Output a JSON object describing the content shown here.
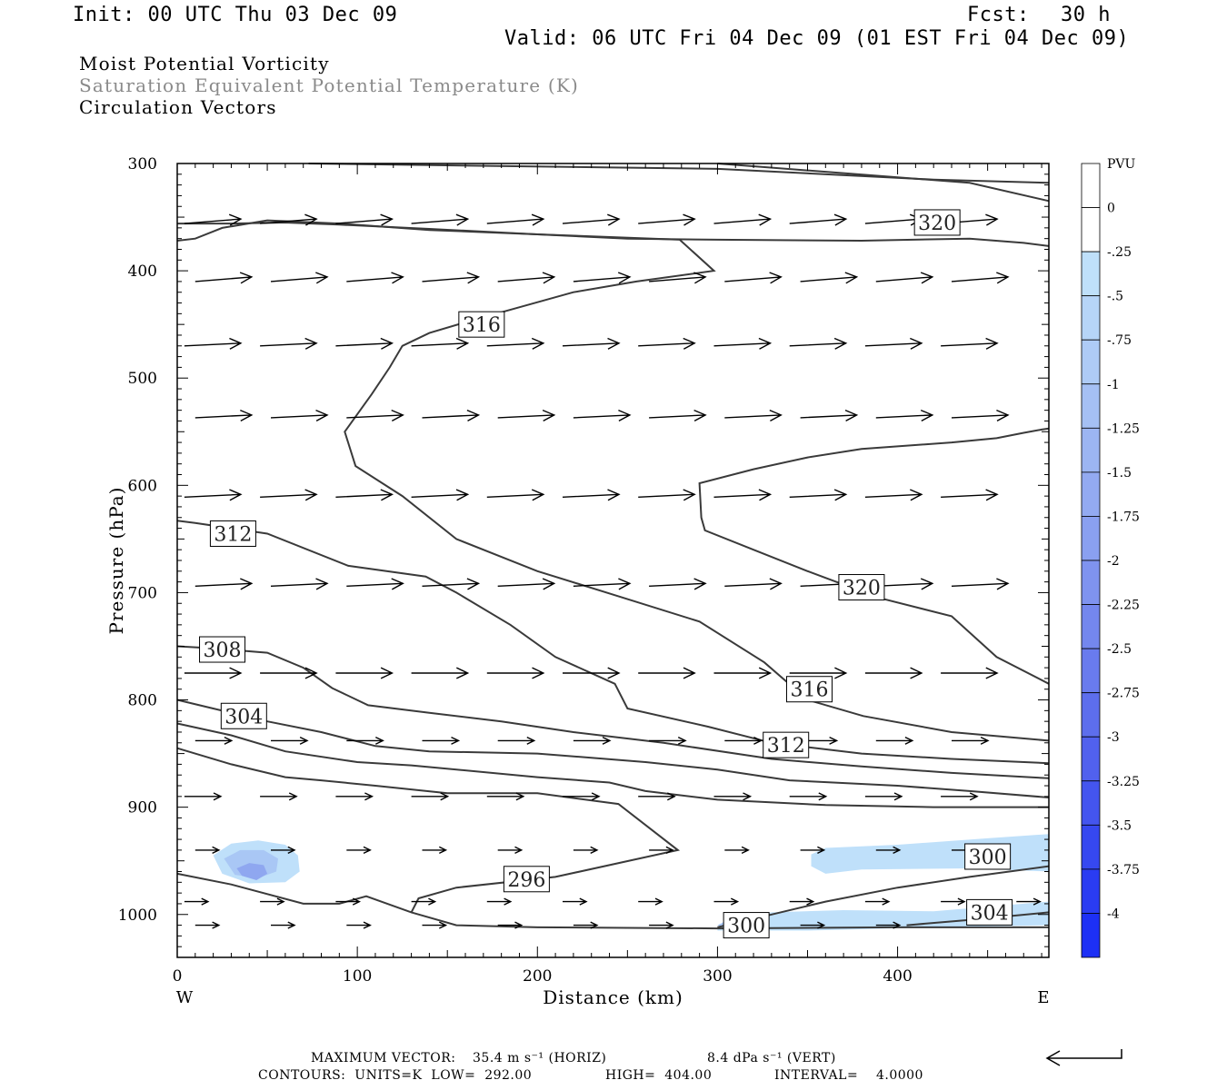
{
  "header": {
    "init": "Init: 00 UTC Thu 03 Dec 09",
    "fcst_label": "Fcst:",
    "fcst_value": "30 h",
    "valid": "Valid: 06 UTC Fri 04 Dec 09 (01 EST Fri 04 Dec 09)"
  },
  "fields": [
    "Moist Potential Vorticity",
    "Saturation Equivalent Potential Temperature (K)",
    "Circulation Vectors"
  ],
  "footer": {
    "max_vector_label": "MAXIMUM VECTOR:",
    "max_vector_horiz": "35.4 m s⁻¹ (HORIZ)",
    "max_vector_vert": "8.4 dPa s⁻¹ (VERT)",
    "contours": "CONTOURS:  UNITS=K  LOW=  292.00",
    "high": "HIGH=  404.00",
    "interval": "INTERVAL=    4.0000"
  },
  "colors": {
    "contour": "#3a3a3a",
    "pv_light": "#bfe0fa",
    "pv_mid": "#a9c7f5",
    "pv_strong": "#8fa7f0"
  },
  "chart_data": {
    "type": "cross-section",
    "xlabel": "Distance (km)",
    "ylabel": "Pressure (hPa)",
    "x_ticks": [
      0,
      100,
      200,
      300,
      400
    ],
    "y_ticks": [
      300,
      400,
      500,
      600,
      700,
      800,
      900,
      1000
    ],
    "xlim": [
      0,
      484
    ],
    "ylim": [
      1040,
      300
    ],
    "side_left": "W",
    "side_right": "E",
    "colorbar": {
      "title": "PVU",
      "ticks": [
        "0",
        "-.25",
        "-.5",
        "-.75",
        "-1",
        "-1.25",
        "-1.5",
        "-1.75",
        "-2",
        "-2.25",
        "-2.5",
        "-2.75",
        "-3",
        "-3.25",
        "-3.5",
        "-3.75",
        "-4"
      ],
      "colors": [
        "#ffffff",
        "#ffffff",
        "#bfe0fa",
        "#b6d5f8",
        "#aecbf6",
        "#a5c0f4",
        "#9cb5f2",
        "#93aaf1",
        "#8aa0f0",
        "#7f93ef",
        "#7487ee",
        "#697bee",
        "#5d6eed",
        "#5161ee",
        "#4455ef",
        "#3648f0",
        "#2a3cf2",
        "#1d30f5"
      ]
    },
    "contour_labels": [
      {
        "text": "320",
        "x": 422,
        "p": 355
      },
      {
        "text": "316",
        "x": 169,
        "p": 450
      },
      {
        "text": "320",
        "x": 380,
        "p": 695
      },
      {
        "text": "312",
        "x": 31,
        "p": 645
      },
      {
        "text": "308",
        "x": 25,
        "p": 753
      },
      {
        "text": "304",
        "x": 37,
        "p": 815
      },
      {
        "text": "316",
        "x": 351,
        "p": 790
      },
      {
        "text": "312",
        "x": 338,
        "p": 842
      },
      {
        "text": "296",
        "x": 194,
        "p": 967
      },
      {
        "text": "300",
        "x": 450,
        "p": 946
      },
      {
        "text": "304",
        "x": 451,
        "p": 998
      },
      {
        "text": "300",
        "x": 316,
        "p": 1010
      }
    ],
    "contours": [
      {
        "points": [
          [
            73,
            300
          ],
          [
            300,
            305
          ],
          [
            420,
            315
          ],
          [
            484,
            318
          ]
        ]
      },
      {
        "points": [
          [
            300,
            300
          ],
          [
            440,
            318
          ],
          [
            484,
            335
          ]
        ]
      },
      {
        "points": [
          [
            0,
            372
          ],
          [
            10,
            370
          ],
          [
            25,
            360
          ],
          [
            50,
            353
          ],
          [
            90,
            356
          ],
          [
            140,
            362
          ],
          [
            200,
            366
          ],
          [
            250,
            370
          ],
          [
            300,
            371
          ],
          [
            380,
            372
          ],
          [
            440,
            370
          ],
          [
            470,
            374
          ],
          [
            484,
            377
          ]
        ]
      },
      {
        "points": [
          [
            0,
            356
          ],
          [
            30,
            356
          ],
          [
            60,
            355
          ],
          [
            90,
            357
          ],
          [
            140,
            361
          ],
          [
            200,
            366
          ],
          [
            279,
            371
          ],
          [
            298,
            400
          ],
          [
            255,
            410
          ],
          [
            220,
            420
          ],
          [
            160,
            448
          ],
          [
            140,
            458
          ],
          [
            125,
            470
          ],
          [
            118,
            490
          ],
          [
            108,
            515
          ],
          [
            93,
            550
          ],
          [
            99,
            582
          ],
          [
            125,
            610
          ],
          [
            155,
            650
          ],
          [
            200,
            680
          ],
          [
            248,
            705
          ],
          [
            290,
            727
          ],
          [
            326,
            765
          ],
          [
            350,
            800
          ],
          [
            381,
            815
          ],
          [
            430,
            830
          ],
          [
            484,
            838
          ]
        ]
      },
      {
        "points": [
          [
            0,
            633
          ],
          [
            10,
            635
          ],
          [
            50,
            645
          ],
          [
            95,
            675
          ],
          [
            138,
            685
          ],
          [
            155,
            700
          ],
          [
            185,
            730
          ],
          [
            210,
            760
          ],
          [
            243,
            785
          ],
          [
            250,
            808
          ],
          [
            295,
            825
          ],
          [
            330,
            840
          ],
          [
            380,
            850
          ],
          [
            430,
            855
          ],
          [
            484,
            859
          ]
        ]
      },
      {
        "points": [
          [
            0,
            750
          ],
          [
            20,
            752
          ],
          [
            50,
            756
          ],
          [
            70,
            770
          ],
          [
            86,
            789
          ],
          [
            106,
            805
          ],
          [
            140,
            812
          ],
          [
            180,
            820
          ],
          [
            220,
            830
          ],
          [
            270,
            840
          ],
          [
            330,
            855
          ],
          [
            380,
            862
          ],
          [
            430,
            868
          ],
          [
            484,
            873
          ]
        ]
      },
      {
        "points": [
          [
            0,
            800
          ],
          [
            20,
            808
          ],
          [
            50,
            820
          ],
          [
            80,
            830
          ],
          [
            110,
            843
          ],
          [
            140,
            848
          ],
          [
            200,
            850
          ],
          [
            260,
            858
          ],
          [
            300,
            865
          ],
          [
            340,
            875
          ],
          [
            400,
            880
          ],
          [
            440,
            885
          ],
          [
            484,
            891
          ]
        ]
      },
      {
        "points": [
          [
            0,
            822
          ],
          [
            30,
            833
          ],
          [
            60,
            848
          ],
          [
            100,
            858
          ],
          [
            130,
            861
          ],
          [
            200,
            872
          ],
          [
            240,
            877
          ],
          [
            260,
            885
          ],
          [
            300,
            893
          ],
          [
            360,
            898
          ],
          [
            420,
            900
          ],
          [
            484,
            900
          ]
        ]
      },
      {
        "points": [
          [
            0,
            845
          ],
          [
            30,
            860
          ],
          [
            60,
            872
          ],
          [
            80,
            875
          ],
          [
            110,
            880
          ],
          [
            150,
            887
          ],
          [
            200,
            887
          ],
          [
            245,
            897
          ],
          [
            278,
            940
          ],
          [
            210,
            965
          ],
          [
            155,
            975
          ],
          [
            134,
            985
          ],
          [
            130,
            998
          ]
        ]
      },
      {
        "points": [
          [
            0,
            962
          ],
          [
            30,
            972
          ],
          [
            70,
            990
          ],
          [
            90,
            990
          ],
          [
            105,
            983
          ],
          [
            130,
            998
          ],
          [
            155,
            1010
          ],
          [
            200,
            1012
          ],
          [
            300,
            1013
          ],
          [
            400,
            1012
          ],
          [
            484,
            1012
          ]
        ]
      },
      {
        "points": [
          [
            300,
            1012
          ],
          [
            330,
            1000
          ],
          [
            360,
            988
          ],
          [
            400,
            975
          ],
          [
            440,
            965
          ],
          [
            484,
            955
          ]
        ]
      },
      {
        "points": [
          [
            405,
            1010
          ],
          [
            440,
            1005
          ],
          [
            484,
            998
          ]
        ]
      },
      {
        "points": [
          [
            484,
            547
          ],
          [
            480,
            548
          ],
          [
            470,
            551
          ],
          [
            455,
            556
          ],
          [
            430,
            560
          ],
          [
            380,
            566
          ],
          [
            350,
            574
          ],
          [
            320,
            585
          ],
          [
            290,
            598
          ],
          [
            291,
            630
          ],
          [
            293,
            642
          ],
          [
            320,
            660
          ],
          [
            350,
            680
          ],
          [
            390,
            705
          ],
          [
            430,
            722
          ],
          [
            455,
            760
          ],
          [
            484,
            785
          ]
        ]
      }
    ],
    "pv_regions": [
      {
        "level": "light",
        "points": [
          [
            20,
            945
          ],
          [
            30,
            934
          ],
          [
            45,
            931
          ],
          [
            60,
            935
          ],
          [
            67,
            945
          ],
          [
            68,
            960
          ],
          [
            60,
            970
          ],
          [
            40,
            971
          ],
          [
            25,
            962
          ]
        ]
      },
      {
        "level": "mid",
        "points": [
          [
            26,
            948
          ],
          [
            35,
            940
          ],
          [
            48,
            940
          ],
          [
            56,
            948
          ],
          [
            55,
            960
          ],
          [
            45,
            966
          ],
          [
            32,
            963
          ]
        ]
      },
      {
        "level": "strong",
        "points": [
          [
            33,
            957
          ],
          [
            40,
            952
          ],
          [
            48,
            954
          ],
          [
            50,
            962
          ],
          [
            44,
            968
          ],
          [
            36,
            964
          ]
        ]
      },
      {
        "level": "light",
        "points": [
          [
            352,
            944
          ],
          [
            360,
            938
          ],
          [
            400,
            935
          ],
          [
            450,
            929
          ],
          [
            484,
            925
          ],
          [
            484,
            960
          ],
          [
            440,
            957
          ],
          [
            380,
            958
          ],
          [
            360,
            962
          ],
          [
            352,
            955
          ]
        ]
      },
      {
        "level": "light",
        "points": [
          [
            300,
            1012
          ],
          [
            305,
            1004
          ],
          [
            330,
            998
          ],
          [
            370,
            996
          ],
          [
            420,
            997
          ],
          [
            484,
            988
          ],
          [
            484,
            1010
          ],
          [
            420,
            1012
          ],
          [
            350,
            1015
          ],
          [
            300,
            1015
          ]
        ]
      },
      {
        "level": "mid",
        "points": [
          [
            300,
            1010
          ],
          [
            306,
            1005
          ],
          [
            320,
            1002
          ],
          [
            324,
            1010
          ],
          [
            312,
            1015
          ]
        ]
      }
    ],
    "vector_rows": [
      {
        "p": 356,
        "n": 12
      },
      {
        "p": 410,
        "n": 12
      },
      {
        "p": 470,
        "n": 12
      },
      {
        "p": 537,
        "n": 12
      },
      {
        "p": 611,
        "n": 12
      },
      {
        "p": 694,
        "n": 12
      },
      {
        "p": 775,
        "n": 12
      },
      {
        "p": 838,
        "n": 12
      },
      {
        "p": 890,
        "n": 12
      },
      {
        "p": 940,
        "n": 12
      },
      {
        "p": 988,
        "n": 12
      },
      {
        "p": 1010,
        "n": 10
      }
    ]
  }
}
